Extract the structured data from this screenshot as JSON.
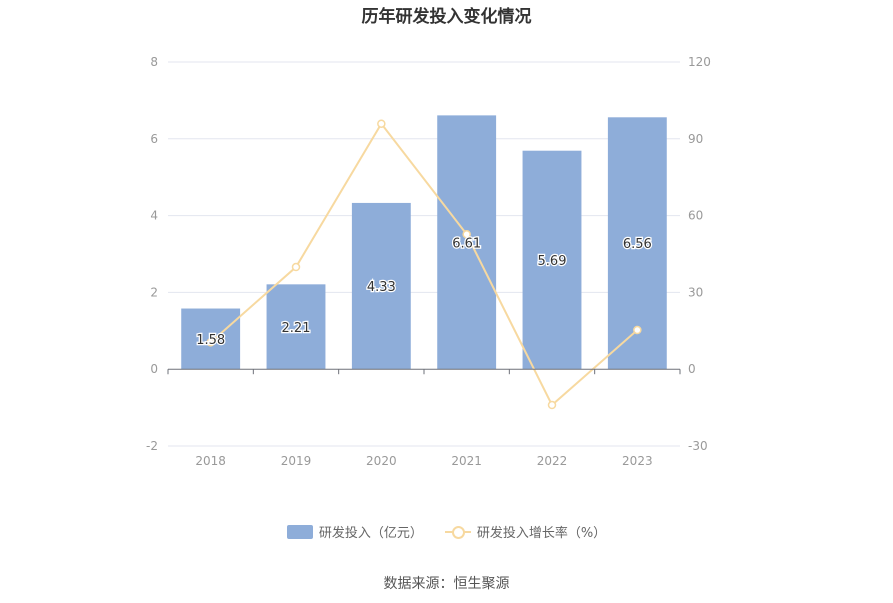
{
  "title": "历年研发投入变化情况",
  "source_label": "数据来源：恒生聚源",
  "colors": {
    "bar": "#8eadd9",
    "line": "#f7d9a0",
    "grid": "#e3e6ef",
    "axis_text": "#999999"
  },
  "chart_data": {
    "type": "bar",
    "categories": [
      "2018",
      "2019",
      "2020",
      "2021",
      "2022",
      "2023"
    ],
    "series": [
      {
        "name": "研发投入（亿元）",
        "type": "bar",
        "axis": "left",
        "values": [
          1.58,
          2.21,
          4.33,
          6.61,
          5.69,
          6.56
        ],
        "labels": [
          "1.58",
          "2.21",
          "4.33",
          "6.61",
          "5.69",
          "6.56"
        ]
      },
      {
        "name": "研发投入增长率（%）",
        "type": "line",
        "axis": "right",
        "values": [
          10.5,
          39.9,
          95.9,
          52.7,
          -14.0,
          15.3
        ]
      }
    ],
    "y_left": {
      "min": -2,
      "max": 8,
      "ticks": [
        "-2",
        "0",
        "2",
        "4",
        "6",
        "8"
      ]
    },
    "y_right": {
      "min": -30,
      "max": 120,
      "ticks": [
        "-30",
        "0",
        "30",
        "60",
        "90",
        "120"
      ]
    },
    "grid": true,
    "legend_position": "bottom"
  }
}
